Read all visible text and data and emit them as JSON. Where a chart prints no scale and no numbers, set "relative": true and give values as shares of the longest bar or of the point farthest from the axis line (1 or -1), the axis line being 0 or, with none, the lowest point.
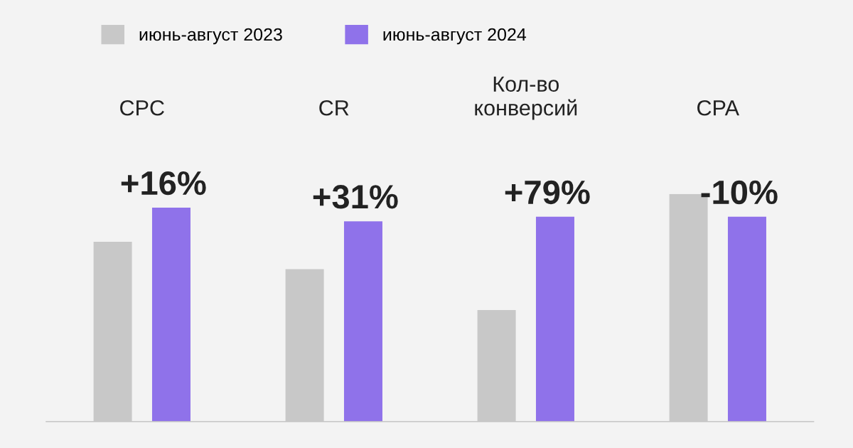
{
  "chart_data": {
    "type": "bar",
    "relative": true,
    "categories": [
      "CPC",
      "CR",
      "Кол-во\nконверсий",
      "CPA"
    ],
    "series": [
      {
        "name": "июнь-август 2023",
        "color": "#c8c8c8",
        "values": [
          0.79,
          0.67,
          0.49,
          1.0
        ]
      },
      {
        "name": "июнь-август 2024",
        "color": "#8f72ea",
        "values": [
          0.94,
          0.88,
          0.9,
          0.9
        ]
      }
    ],
    "legend": "top left",
    "grid": false,
    "annotations": [
      "+16%",
      "+31%",
      "+79%",
      "-10%"
    ]
  }
}
